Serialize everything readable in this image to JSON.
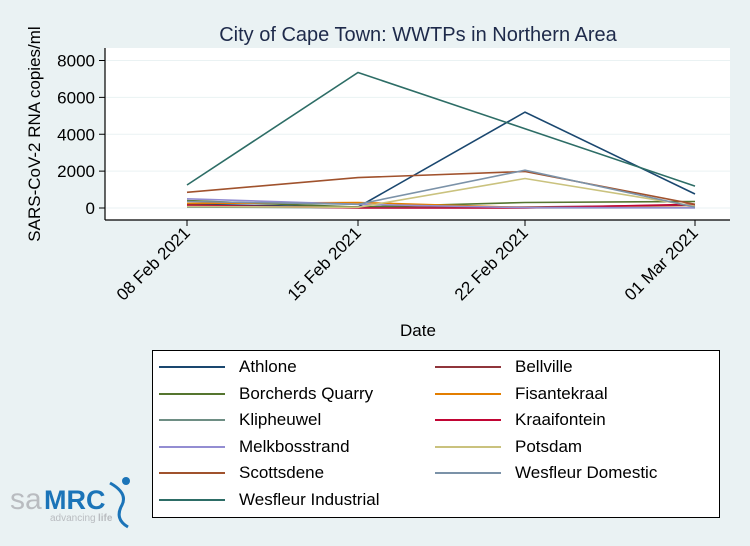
{
  "chart_data": {
    "type": "line",
    "title": "City of Cape Town: WWTPs in Northern Area",
    "xlabel": "Date",
    "ylabel": "SARS-CoV-2 RNA copies/ml",
    "categories": [
      "08 Feb 2021",
      "15 Feb 2021",
      "22 Feb 2021",
      "01 Mar 2021"
    ],
    "ylim": [
      -650,
      8700
    ],
    "yticks": [
      0,
      2000,
      4000,
      6000,
      8000
    ],
    "grid": true,
    "legend_position": "bottom",
    "series": [
      {
        "name": "Athlone",
        "color": "#1a476f",
        "values": [
          200,
          50,
          5200,
          760
        ]
      },
      {
        "name": "Bellville",
        "color": "#90353b",
        "values": [
          100,
          50,
          50,
          150
        ]
      },
      {
        "name": "Borcherds Quarry",
        "color": "#55752f",
        "values": [
          400,
          50,
          300,
          350
        ]
      },
      {
        "name": "Fisantekraal",
        "color": "#e37e00",
        "values": [
          250,
          300,
          20,
          20
        ]
      },
      {
        "name": "Klipheuwel",
        "color": "#6e8e84",
        "values": [
          50,
          10,
          10,
          10
        ]
      },
      {
        "name": "Kraaifontein",
        "color": "#c10534",
        "values": [
          150,
          0,
          0,
          200
        ]
      },
      {
        "name": "Melkbosstrand",
        "color": "#938dd2",
        "values": [
          500,
          200,
          20,
          10
        ]
      },
      {
        "name": "Potsdam",
        "color": "#cac27e",
        "values": [
          80,
          40,
          1600,
          100
        ]
      },
      {
        "name": "Scottsdene",
        "color": "#a0522d",
        "values": [
          850,
          1650,
          1980,
          200
        ]
      },
      {
        "name": "Wesfleur Domestic",
        "color": "#7b92a8",
        "values": [
          350,
          200,
          2050,
          50
        ]
      },
      {
        "name": "Wesfleur Industrial",
        "color": "#2d6d66",
        "values": [
          1250,
          7350,
          4300,
          1190
        ]
      }
    ]
  },
  "logo": {
    "text_sa": "sa",
    "text_mrc": "MRC",
    "tagline_a": "advancing",
    "tagline_b": "life"
  }
}
